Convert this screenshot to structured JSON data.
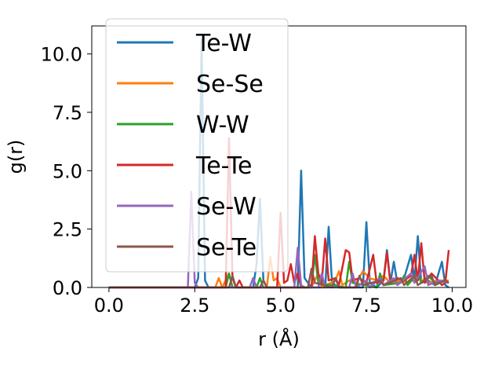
{
  "chart_data": {
    "type": "line",
    "xlabel": "r (Å)",
    "ylabel": "g(r)",
    "xlim": [
      -0.5,
      10.4
    ],
    "ylim": [
      0,
      11.2
    ],
    "x_ticks": [
      0.0,
      2.5,
      5.0,
      7.5,
      10.0
    ],
    "x_tick_labels": [
      "0.0",
      "2.5",
      "5.0",
      "7.5",
      "10.0"
    ],
    "y_ticks": [
      0.0,
      2.5,
      5.0,
      7.5,
      10.0
    ],
    "y_tick_labels": [
      "0.0",
      "2.5",
      "5.0",
      "7.5",
      "10.0"
    ],
    "grid": false,
    "legend_position": "upper-left",
    "series": [
      {
        "name": "Te-W",
        "color": "#1f77b4",
        "points": [
          [
            0,
            0
          ],
          [
            2.5,
            0
          ],
          [
            2.6,
            0.4
          ],
          [
            2.7,
            10.6
          ],
          [
            2.8,
            0.3
          ],
          [
            2.9,
            0
          ],
          [
            4.2,
            0
          ],
          [
            4.3,
            1.0
          ],
          [
            4.4,
            3.8
          ],
          [
            4.5,
            0.3
          ],
          [
            4.6,
            0
          ],
          [
            5.5,
            0
          ],
          [
            5.6,
            5.0
          ],
          [
            5.7,
            0.4
          ],
          [
            5.9,
            0
          ],
          [
            6.3,
            0
          ],
          [
            6.4,
            2.6
          ],
          [
            6.5,
            0.2
          ],
          [
            6.7,
            0
          ],
          [
            7.4,
            0
          ],
          [
            7.5,
            2.8
          ],
          [
            7.6,
            0.2
          ],
          [
            7.8,
            0
          ],
          [
            8.0,
            0.3
          ],
          [
            8.1,
            1.6
          ],
          [
            8.2,
            0.2
          ],
          [
            8.3,
            1.1
          ],
          [
            8.4,
            0.2
          ],
          [
            8.6,
            0.4
          ],
          [
            8.8,
            1.4
          ],
          [
            8.9,
            0.3
          ],
          [
            9.0,
            2.2
          ],
          [
            9.1,
            0.2
          ],
          [
            9.3,
            0.3
          ],
          [
            9.5,
            0.1
          ],
          [
            9.7,
            1.1
          ],
          [
            9.8,
            0.1
          ],
          [
            9.9,
            0
          ]
        ]
      },
      {
        "name": "Se-Se",
        "color": "#ff7f0e",
        "points": [
          [
            0,
            0
          ],
          [
            3.1,
            0
          ],
          [
            3.2,
            0.4
          ],
          [
            3.3,
            0
          ],
          [
            3.5,
            0.6
          ],
          [
            3.6,
            0
          ],
          [
            4.6,
            0
          ],
          [
            4.7,
            1.3
          ],
          [
            4.8,
            0.3
          ],
          [
            4.9,
            0.4
          ],
          [
            5.0,
            0
          ],
          [
            5.9,
            0
          ],
          [
            6.0,
            0.3
          ],
          [
            6.1,
            0.6
          ],
          [
            6.2,
            0
          ],
          [
            6.6,
            0.3
          ],
          [
            6.7,
            0.7
          ],
          [
            6.8,
            0.1
          ],
          [
            7.0,
            0.3
          ],
          [
            7.2,
            0.2
          ],
          [
            7.4,
            0.7
          ],
          [
            7.6,
            0.4
          ],
          [
            7.8,
            0.3
          ],
          [
            8.0,
            0.5
          ],
          [
            8.2,
            0.2
          ],
          [
            8.5,
            0.3
          ],
          [
            8.7,
            0.2
          ],
          [
            9.0,
            0.4
          ],
          [
            9.3,
            0.2
          ],
          [
            9.6,
            0.3
          ],
          [
            9.9,
            0.3
          ]
        ]
      },
      {
        "name": "W-W",
        "color": "#2ca02c",
        "points": [
          [
            0,
            0
          ],
          [
            3.4,
            0
          ],
          [
            3.5,
            0.6
          ],
          [
            3.6,
            0
          ],
          [
            4.3,
            0
          ],
          [
            4.4,
            0.4
          ],
          [
            4.5,
            0
          ],
          [
            5.9,
            0
          ],
          [
            6.0,
            1.4
          ],
          [
            6.1,
            0.2
          ],
          [
            6.9,
            0
          ],
          [
            7.0,
            1.1
          ],
          [
            7.1,
            0.2
          ],
          [
            7.8,
            0
          ],
          [
            7.9,
            0.6
          ],
          [
            8.0,
            0.1
          ],
          [
            8.5,
            0.2
          ],
          [
            8.6,
            0.5
          ],
          [
            8.7,
            0.1
          ],
          [
            9.0,
            0.6
          ],
          [
            9.1,
            0.2
          ],
          [
            9.3,
            0.5
          ],
          [
            9.5,
            0.2
          ],
          [
            9.8,
            0.3
          ],
          [
            9.9,
            0.2
          ]
        ]
      },
      {
        "name": "Te-Te",
        "color": "#d62728",
        "points": [
          [
            0,
            0
          ],
          [
            3.4,
            0
          ],
          [
            3.5,
            6.4
          ],
          [
            3.6,
            0.4
          ],
          [
            3.7,
            0
          ],
          [
            3.8,
            0.3
          ],
          [
            3.9,
            0
          ],
          [
            4.9,
            0
          ],
          [
            5.0,
            3.2
          ],
          [
            5.1,
            0.2
          ],
          [
            5.2,
            0.3
          ],
          [
            5.3,
            1.0
          ],
          [
            5.4,
            0.2
          ],
          [
            5.5,
            0.6
          ],
          [
            5.6,
            0
          ],
          [
            5.9,
            0
          ],
          [
            6.0,
            2.2
          ],
          [
            6.1,
            0.6
          ],
          [
            6.2,
            0.2
          ],
          [
            6.3,
            2.1
          ],
          [
            6.4,
            0.3
          ],
          [
            6.6,
            0.4
          ],
          [
            6.7,
            0.1
          ],
          [
            6.9,
            1.6
          ],
          [
            7.0,
            1.5
          ],
          [
            7.1,
            0.3
          ],
          [
            7.3,
            0.4
          ],
          [
            7.5,
            0.2
          ],
          [
            7.7,
            1.4
          ],
          [
            7.8,
            0.2
          ],
          [
            8.0,
            0.3
          ],
          [
            8.1,
            1.5
          ],
          [
            8.2,
            0.2
          ],
          [
            8.4,
            0.4
          ],
          [
            8.6,
            0.3
          ],
          [
            8.8,
            0.5
          ],
          [
            8.9,
            1.4
          ],
          [
            9.0,
            0.3
          ],
          [
            9.1,
            1.9
          ],
          [
            9.2,
            0.2
          ],
          [
            9.4,
            0.6
          ],
          [
            9.6,
            0.3
          ],
          [
            9.7,
            0.1
          ],
          [
            9.8,
            0.2
          ],
          [
            9.9,
            1.6
          ]
        ]
      },
      {
        "name": "Se-W",
        "color": "#9467bd",
        "points": [
          [
            0,
            0
          ],
          [
            2.3,
            0
          ],
          [
            2.4,
            4.1
          ],
          [
            2.5,
            0.2
          ],
          [
            2.6,
            0
          ],
          [
            4.1,
            0
          ],
          [
            4.2,
            0.4
          ],
          [
            4.3,
            0
          ],
          [
            5.4,
            0
          ],
          [
            5.5,
            1.7
          ],
          [
            5.6,
            0.1
          ],
          [
            5.7,
            0
          ],
          [
            6.1,
            0
          ],
          [
            6.2,
            0.6
          ],
          [
            6.3,
            0
          ],
          [
            7.0,
            0
          ],
          [
            7.1,
            0.6
          ],
          [
            7.2,
            0
          ],
          [
            7.5,
            0.3
          ],
          [
            7.6,
            0
          ],
          [
            7.9,
            0.4
          ],
          [
            8.0,
            0.1
          ],
          [
            8.3,
            0.4
          ],
          [
            8.4,
            0.1
          ],
          [
            8.8,
            0.6
          ],
          [
            8.9,
            0.2
          ],
          [
            9.2,
            0.9
          ],
          [
            9.3,
            0.1
          ],
          [
            9.6,
            0.3
          ],
          [
            9.9,
            0.2
          ]
        ]
      },
      {
        "name": "Se-Te",
        "color": "#8c564b",
        "points": [
          [
            0,
            0
          ],
          [
            3.5,
            0
          ],
          [
            3.6,
            0.5
          ],
          [
            3.7,
            0
          ],
          [
            4.4,
            0
          ],
          [
            4.5,
            0.3
          ],
          [
            4.6,
            0
          ],
          [
            5.8,
            0
          ],
          [
            5.9,
            0.8
          ],
          [
            6.0,
            0.2
          ],
          [
            6.5,
            0
          ],
          [
            6.6,
            0.4
          ],
          [
            6.7,
            0
          ],
          [
            7.2,
            0
          ],
          [
            7.3,
            0.5
          ],
          [
            7.4,
            0.1
          ],
          [
            7.9,
            0.3
          ],
          [
            8.0,
            0.1
          ],
          [
            8.5,
            0.4
          ],
          [
            8.6,
            0.1
          ],
          [
            8.9,
            0.5
          ],
          [
            9.0,
            0.1
          ],
          [
            9.4,
            0.5
          ],
          [
            9.5,
            0.1
          ],
          [
            9.8,
            0.3
          ],
          [
            9.9,
            0.2
          ]
        ]
      }
    ]
  }
}
